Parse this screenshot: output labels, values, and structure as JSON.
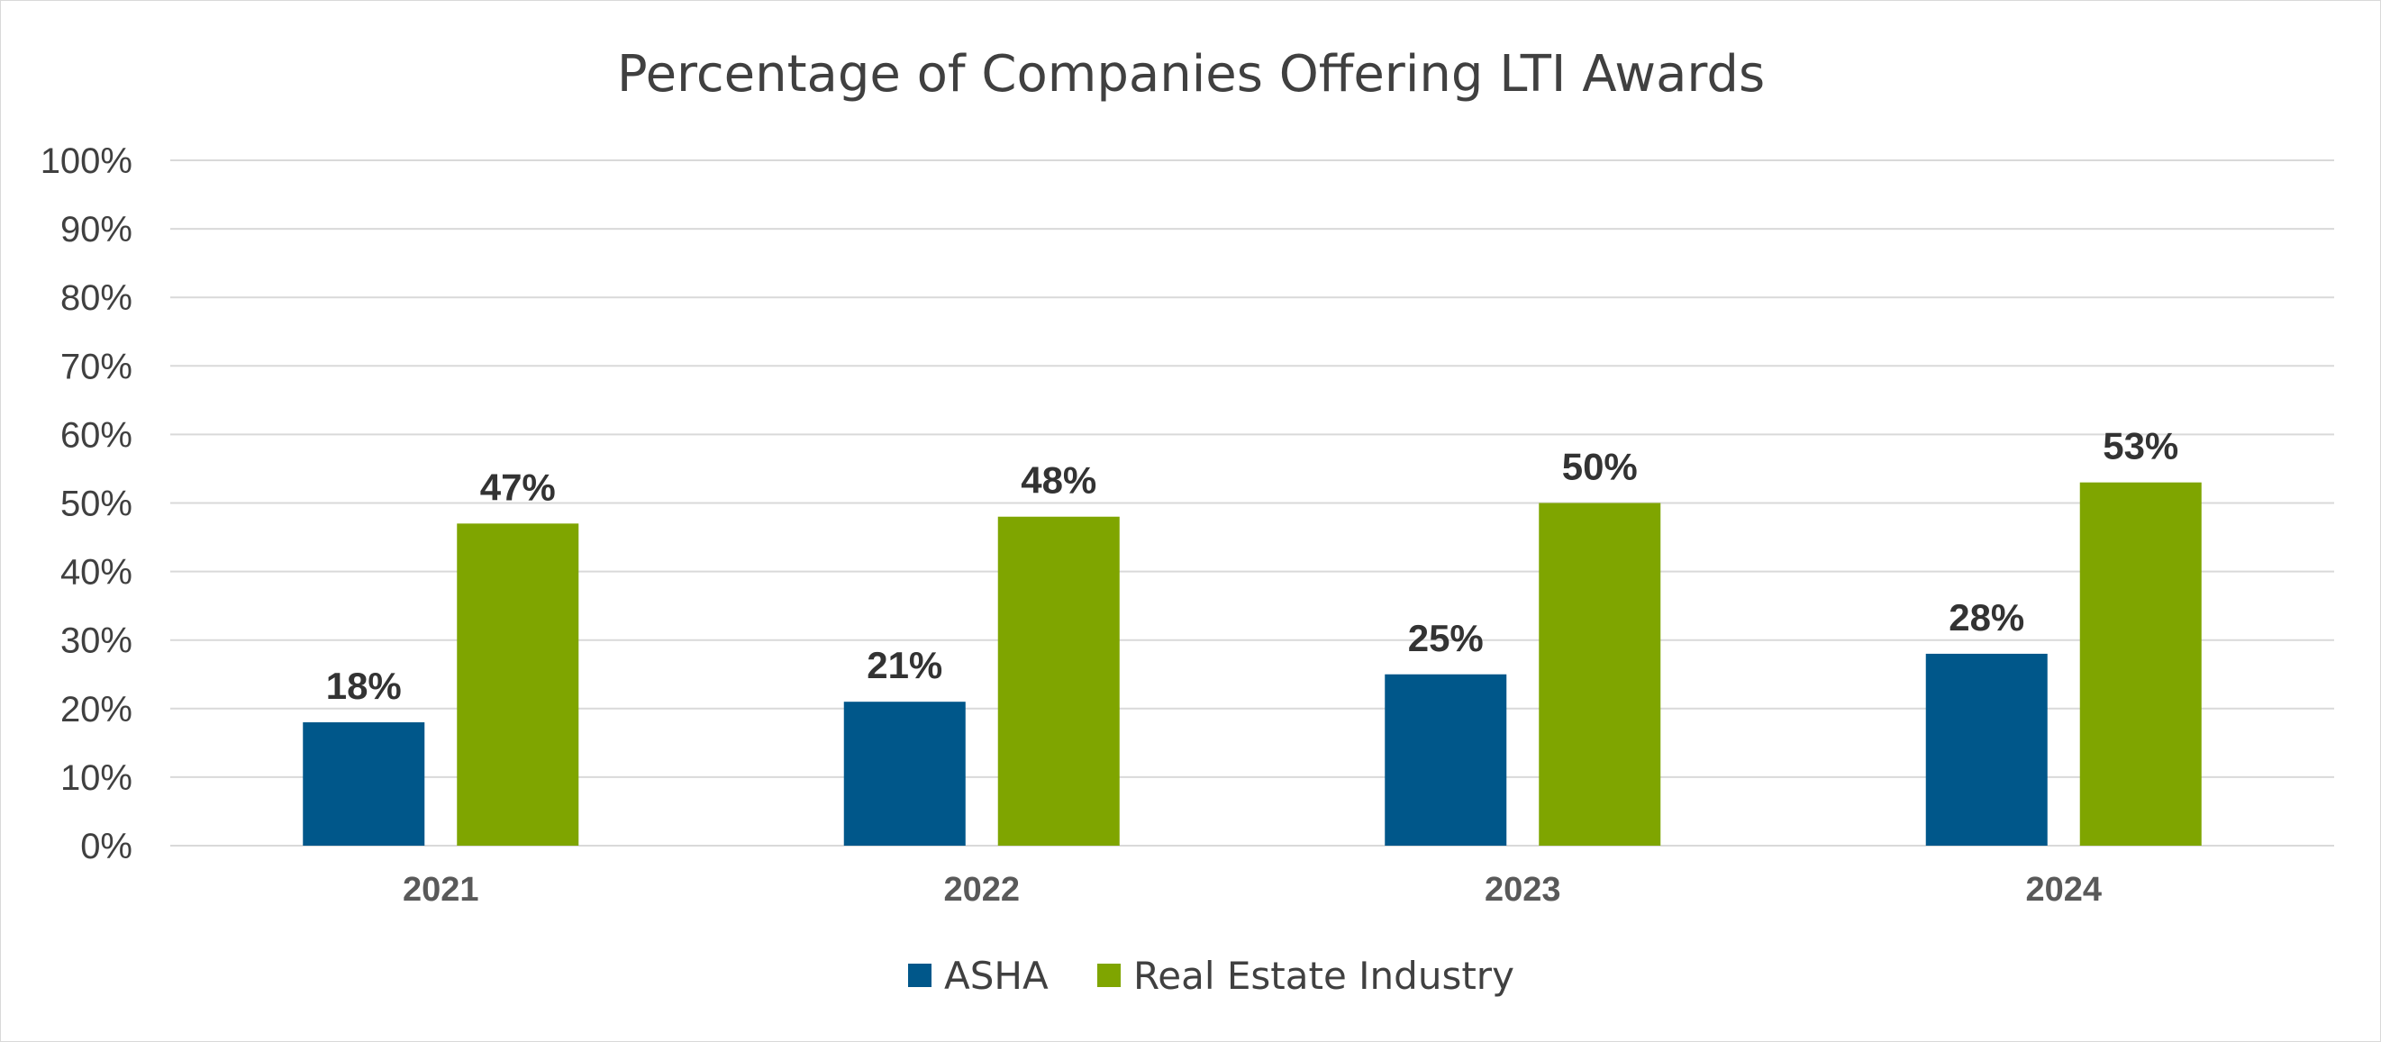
{
  "chart_data": {
    "type": "bar",
    "title": "Percentage of Companies Offering LTI Awards",
    "categories": [
      "2021",
      "2022",
      "2023",
      "2024"
    ],
    "series": [
      {
        "name": "ASHA",
        "values": [
          18,
          21,
          25,
          28
        ],
        "labels": [
          "18%",
          "21%",
          "25%",
          "28%"
        ],
        "color": "#00578a"
      },
      {
        "name": "Real Estate Industry",
        "values": [
          47,
          48,
          50,
          53
        ],
        "labels": [
          "47%",
          "48%",
          "50%",
          "53%"
        ],
        "color": "#7fa500"
      }
    ],
    "ylim": [
      0,
      100
    ],
    "yticks": [
      0,
      10,
      20,
      30,
      40,
      50,
      60,
      70,
      80,
      90,
      100
    ],
    "ytick_labels": [
      "0%",
      "10%",
      "20%",
      "30%",
      "40%",
      "50%",
      "60%",
      "70%",
      "80%",
      "90%",
      "100%"
    ],
    "grid": true,
    "legend_position": "bottom"
  },
  "colors": {
    "gridline": "#d9d9d9",
    "axis_text": "#404040"
  }
}
